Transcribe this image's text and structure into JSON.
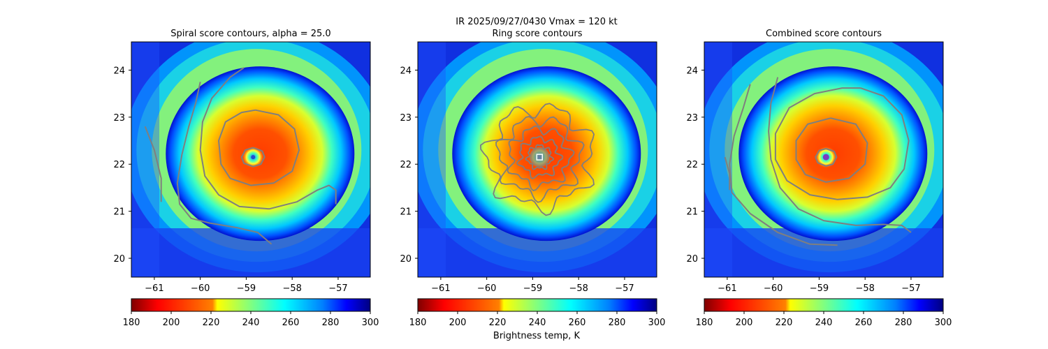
{
  "suptitle": {
    "line1": "IR  2025/09/27/0430    Vmax = 120 kt"
  },
  "colors": {
    "contour": "#7f7f7f",
    "colormap": [
      "#800000",
      "#ff0000",
      "#ff8000",
      "#ffff00",
      "#80ff80",
      "#00ffff",
      "#0080ff",
      "#0000ff",
      "#000080"
    ]
  },
  "colorbar": {
    "ticks": [
      180,
      200,
      220,
      240,
      260,
      280,
      300
    ],
    "range": [
      180,
      300
    ],
    "label": "Brightness temp, K",
    "colormap": "jet_r"
  },
  "chart_data": [
    {
      "type": "heatmap",
      "title": "Spiral score contours, alpha = 25.0",
      "xlim": [
        -61.5,
        -56.3
      ],
      "ylim": [
        19.6,
        24.6
      ],
      "xticks": [
        -61,
        -60,
        -59,
        -58,
        -57
      ],
      "yticks": [
        20,
        21,
        22,
        23,
        24
      ],
      "field": "Brightness temp, K",
      "eye_center": [
        -58.85,
        22.15
      ],
      "center_marker": "dot",
      "contours": [
        {
          "level": "inner",
          "points": [
            [
              -58.85,
              22.35
            ],
            [
              -58.65,
              22.28
            ],
            [
              -58.6,
              22.15
            ],
            [
              -58.68,
              22.0
            ],
            [
              -58.85,
              21.95
            ],
            [
              -59.05,
              22.02
            ],
            [
              -59.1,
              22.15
            ],
            [
              -59.02,
              22.3
            ],
            [
              -58.85,
              22.35
            ]
          ]
        },
        {
          "level": "middle",
          "points": [
            [
              -58.8,
              23.15
            ],
            [
              -58.3,
              23.05
            ],
            [
              -57.95,
              22.75
            ],
            [
              -57.85,
              22.3
            ],
            [
              -58.0,
              21.85
            ],
            [
              -58.4,
              21.6
            ],
            [
              -58.9,
              21.55
            ],
            [
              -59.35,
              21.7
            ],
            [
              -59.55,
              22.0
            ],
            [
              -59.6,
              22.5
            ],
            [
              -59.45,
              22.9
            ],
            [
              -59.1,
              23.1
            ],
            [
              -58.8,
              23.15
            ]
          ]
        },
        {
          "level": "outer",
          "points": [
            [
              -59.05,
              24.05
            ],
            [
              -59.35,
              23.85
            ],
            [
              -59.75,
              23.4
            ],
            [
              -59.95,
              22.9
            ],
            [
              -60.0,
              22.3
            ],
            [
              -59.9,
              21.75
            ],
            [
              -59.6,
              21.35
            ],
            [
              -59.15,
              21.1
            ],
            [
              -58.5,
              21.05
            ],
            [
              -57.9,
              21.2
            ],
            [
              -57.45,
              21.45
            ],
            [
              -57.2,
              21.55
            ],
            [
              -57.05,
              21.45
            ],
            [
              -57.05,
              21.15
            ]
          ]
        },
        {
          "level": "outermost",
          "points": [
            [
              -60.0,
              23.75
            ],
            [
              -60.1,
              23.3
            ],
            [
              -60.25,
              22.8
            ],
            [
              -60.4,
              22.2
            ],
            [
              -60.5,
              21.6
            ],
            [
              -60.45,
              21.15
            ],
            [
              -60.2,
              20.85
            ],
            [
              -59.8,
              20.75
            ],
            [
              -59.2,
              20.65
            ],
            [
              -58.75,
              20.55
            ],
            [
              -58.45,
              20.3
            ]
          ]
        },
        {
          "level": "edge",
          "points": [
            [
              -61.2,
              22.8
            ],
            [
              -61.0,
              22.3
            ],
            [
              -60.85,
              21.7
            ],
            [
              -60.85,
              21.2
            ]
          ]
        }
      ]
    },
    {
      "type": "heatmap",
      "title": "Ring score contours",
      "xlim": [
        -61.5,
        -56.3
      ],
      "ylim": [
        19.6,
        24.6
      ],
      "xticks": [
        -61,
        -60,
        -59,
        -58,
        -57
      ],
      "yticks": [
        20,
        21,
        22,
        23,
        24
      ],
      "field": "Brightness temp, K",
      "eye_center": [
        -58.85,
        22.15
      ],
      "center_marker": "square"
    },
    {
      "type": "heatmap",
      "title": "Combined score contours",
      "xlim": [
        -61.5,
        -56.3
      ],
      "ylim": [
        19.6,
        24.6
      ],
      "xticks": [
        -61,
        -60,
        -59,
        -58,
        -57
      ],
      "yticks": [
        20,
        21,
        22,
        23,
        24
      ],
      "field": "Brightness temp, K",
      "eye_center": [
        -58.85,
        22.15
      ],
      "center_marker": "circle",
      "contours": [
        {
          "level": "inner",
          "points": [
            [
              -58.85,
              22.33
            ],
            [
              -58.67,
              22.27
            ],
            [
              -58.62,
              22.15
            ],
            [
              -58.7,
              22.0
            ],
            [
              -58.85,
              21.96
            ],
            [
              -59.03,
              22.03
            ],
            [
              -59.08,
              22.15
            ],
            [
              -59.0,
              22.29
            ],
            [
              -58.85,
              22.33
            ]
          ]
        },
        {
          "level": "middle",
          "points": [
            [
              -58.75,
              22.98
            ],
            [
              -58.2,
              22.85
            ],
            [
              -57.95,
              22.45
            ],
            [
              -58.0,
              22.0
            ],
            [
              -58.35,
              21.7
            ],
            [
              -58.85,
              21.62
            ],
            [
              -59.3,
              21.78
            ],
            [
              -59.5,
              22.1
            ],
            [
              -59.5,
              22.5
            ],
            [
              -59.25,
              22.85
            ],
            [
              -58.75,
              22.98
            ]
          ]
        },
        {
          "level": "outer",
          "points": [
            [
              -58.1,
              23.62
            ],
            [
              -57.6,
              23.45
            ],
            [
              -57.2,
              23.05
            ],
            [
              -57.05,
              22.5
            ],
            [
              -57.15,
              21.9
            ],
            [
              -57.45,
              21.5
            ],
            [
              -57.95,
              21.3
            ],
            [
              -58.6,
              21.25
            ],
            [
              -59.2,
              21.35
            ],
            [
              -59.7,
              21.65
            ],
            [
              -59.95,
              22.1
            ],
            [
              -59.95,
              22.65
            ],
            [
              -59.65,
              23.2
            ],
            [
              -59.1,
              23.5
            ],
            [
              -58.5,
              23.62
            ],
            [
              -58.1,
              23.62
            ]
          ]
        },
        {
          "level": "outermost",
          "points": [
            [
              -59.9,
              23.85
            ],
            [
              -60.05,
              23.3
            ],
            [
              -60.1,
              22.7
            ],
            [
              -60.05,
              22.1
            ],
            [
              -59.85,
              21.5
            ],
            [
              -59.45,
              21.05
            ],
            [
              -58.9,
              20.8
            ],
            [
              -58.2,
              20.7
            ],
            [
              -57.6,
              20.72
            ],
            [
              -57.2,
              20.7
            ],
            [
              -57.0,
              20.55
            ]
          ]
        },
        {
          "level": "edge",
          "points": [
            [
              -60.5,
              23.7
            ],
            [
              -60.65,
              23.2
            ],
            [
              -60.85,
              22.6
            ],
            [
              -60.95,
              22.0
            ],
            [
              -60.9,
              21.4
            ],
            [
              -60.5,
              20.95
            ],
            [
              -59.9,
              20.55
            ],
            [
              -59.2,
              20.3
            ],
            [
              -58.6,
              20.28
            ]
          ]
        },
        {
          "level": "edge2",
          "points": [
            [
              -61.05,
              22.15
            ],
            [
              -60.95,
              21.8
            ],
            [
              -60.95,
              21.45
            ]
          ]
        }
      ]
    }
  ]
}
